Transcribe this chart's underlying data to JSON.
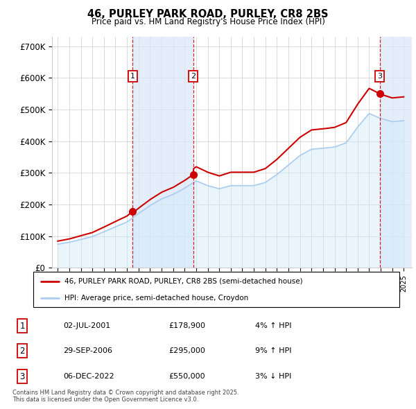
{
  "title": "46, PURLEY PARK ROAD, PURLEY, CR8 2BS",
  "subtitle": "Price paid vs. HM Land Registry's House Price Index (HPI)",
  "ylabel_ticks": [
    "£0",
    "£100K",
    "£200K",
    "£300K",
    "£400K",
    "£500K",
    "£600K",
    "£700K"
  ],
  "ytick_values": [
    0,
    100000,
    200000,
    300000,
    400000,
    500000,
    600000,
    700000
  ],
  "ylim": [
    0,
    730000
  ],
  "xlim_start": 1994.5,
  "xlim_end": 2025.7,
  "sales": [
    {
      "label": "1",
      "date": "02-JUL-2001",
      "year": 2001.5,
      "price": 178900,
      "pct": "4%",
      "direction": "up"
    },
    {
      "label": "2",
      "date": "29-SEP-2006",
      "year": 2006.75,
      "price": 295000,
      "pct": "9%",
      "direction": "up"
    },
    {
      "label": "3",
      "date": "06-DEC-2022",
      "year": 2022.92,
      "price": 550000,
      "pct": "3%",
      "direction": "down"
    }
  ],
  "legend_line1": "46, PURLEY PARK ROAD, PURLEY, CR8 2BS (semi-detached house)",
  "legend_line2": "HPI: Average price, semi-detached house, Croydon",
  "footer": "Contains HM Land Registry data © Crown copyright and database right 2025.\nThis data is licensed under the Open Government Licence v3.0.",
  "plot_bg": "#ffffff",
  "grid_color": "#cccccc",
  "red_color": "#cc0000",
  "blue_color": "#aaccee",
  "blue_fill_color": "#d0e8f8",
  "sale_shading_color": "#d8e8f8"
}
